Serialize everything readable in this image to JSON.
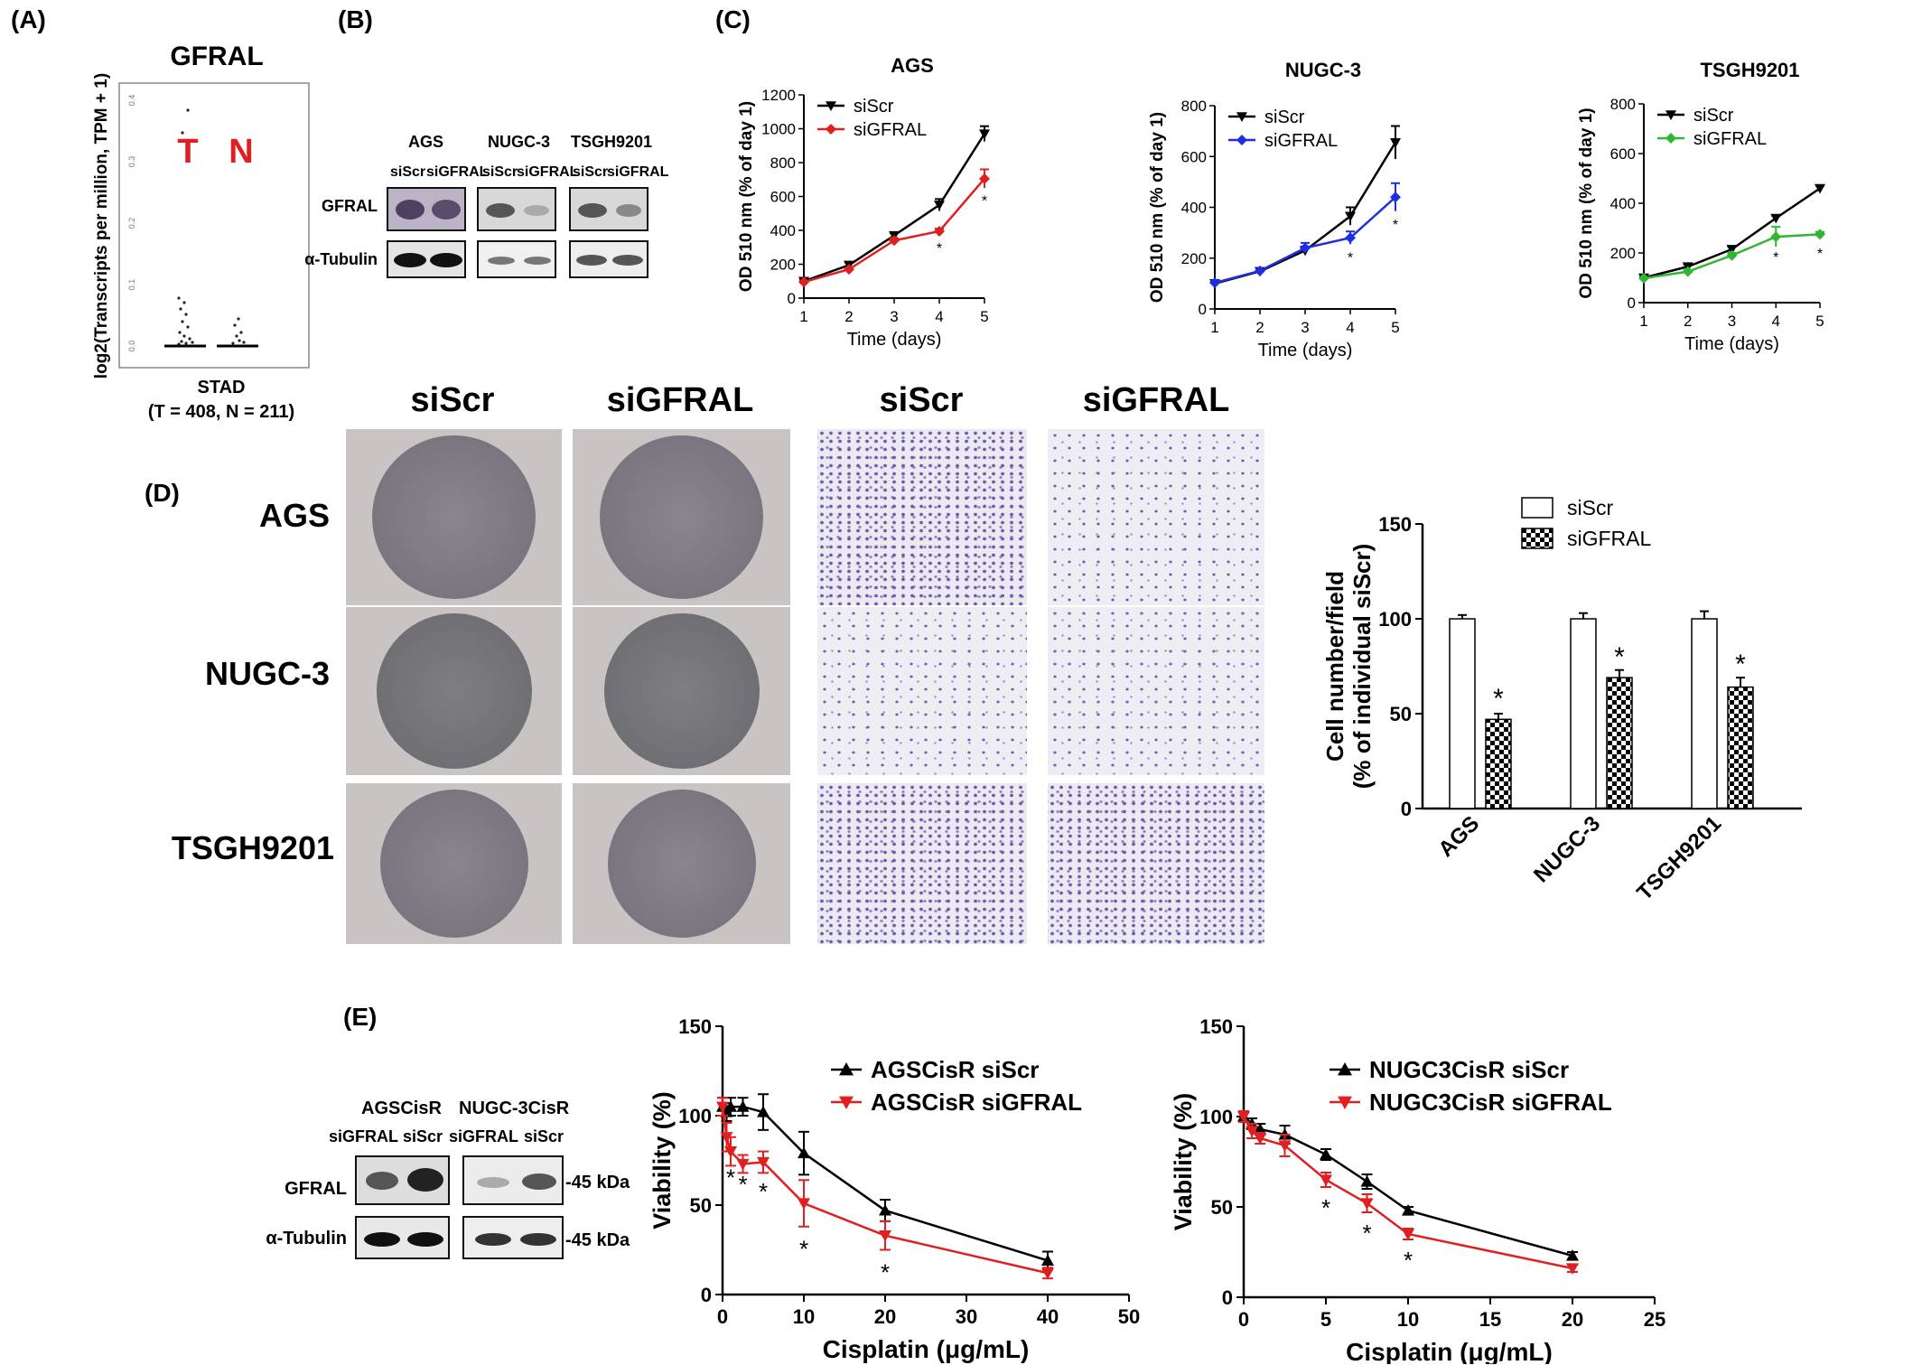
{
  "panels": {
    "A": {
      "label": "(A)",
      "title": "GFRAL",
      "ylabel": "log2(Transcripts per million, TPM + 1)",
      "yticks": [
        "0.0",
        "0.1",
        "0.2",
        "0.3",
        "0.4"
      ],
      "tumor_label": "T",
      "normal_label": "N",
      "xlabel_line1": "STAD",
      "xlabel_line2": "(T = 408, N = 211)",
      "tumor_color": "#e02020",
      "normal_color": "#e02020"
    },
    "B": {
      "label": "(B)",
      "cell_lines": [
        "AGS",
        "NUGC-3",
        "TSGH9201"
      ],
      "conditions": [
        "siScr",
        "siGFRAL"
      ],
      "rows": [
        "GFRAL",
        "α-Tubulin"
      ]
    },
    "C": {
      "label": "(C)"
    },
    "D": {
      "label": "(D)",
      "col_headers": [
        "siScr",
        "siGFRAL",
        "siScr",
        "siGFRAL"
      ],
      "row_headers": [
        "AGS",
        "NUGC-3",
        "TSGH9201"
      ]
    },
    "E": {
      "label": "(E)",
      "cell_lines": [
        "AGSCisR",
        "NUGC-3CisR"
      ],
      "conditions": [
        "siGFRAL",
        "siScr"
      ],
      "rows": [
        "GFRAL",
        "α-Tubulin"
      ],
      "markers": [
        "-45 kDa",
        "-45 kDa"
      ]
    }
  },
  "chart_data": [
    {
      "id": "C-AGS",
      "type": "line",
      "title": "AGS",
      "xlabel": "Time (days)",
      "ylabel": "OD 510 nm (% of day 1)",
      "x": [
        1,
        2,
        3,
        4,
        5
      ],
      "xlim": [
        1,
        5
      ],
      "ylim": [
        0,
        1200
      ],
      "yticks": [
        0,
        200,
        400,
        600,
        800,
        1000,
        1200
      ],
      "legend": "top-left",
      "series": [
        {
          "name": "siScr",
          "color": "#000000",
          "marker": "tri-down",
          "values": [
            100,
            195,
            370,
            550,
            970
          ],
          "err": [
            10,
            15,
            15,
            35,
            45
          ]
        },
        {
          "name": "siGFRAL",
          "color": "#e02020",
          "marker": "diamond",
          "values": [
            95,
            170,
            340,
            395,
            705
          ],
          "err": [
            8,
            10,
            15,
            15,
            55
          ]
        }
      ],
      "stars": [
        {
          "x": 4,
          "y": 300
        },
        {
          "x": 5,
          "y": 580
        }
      ]
    },
    {
      "id": "C-NUGC3",
      "type": "line",
      "title": "NUGC-3",
      "xlabel": "Time (days)",
      "ylabel": "OD 510 nm (% of day 1)",
      "x": [
        1,
        2,
        3,
        4,
        5
      ],
      "xlim": [
        1,
        5
      ],
      "ylim": [
        0,
        800
      ],
      "yticks": [
        0,
        200,
        400,
        600,
        800
      ],
      "legend": "top-left",
      "series": [
        {
          "name": "siScr",
          "color": "#000000",
          "marker": "tri-down",
          "values": [
            100,
            148,
            230,
            365,
            655
          ],
          "err": [
            8,
            8,
            15,
            35,
            65
          ]
        },
        {
          "name": "siGFRAL",
          "color": "#1f2ee0",
          "marker": "diamond",
          "values": [
            103,
            150,
            240,
            280,
            440
          ],
          "err": [
            8,
            8,
            20,
            25,
            55
          ]
        }
      ],
      "stars": [
        {
          "x": 4,
          "y": 205
        },
        {
          "x": 5,
          "y": 335
        }
      ]
    },
    {
      "id": "C-TSGH9201",
      "type": "line",
      "title": "TSGH9201",
      "xlabel": "Time (days)",
      "ylabel": "OD 510 nm (% of day 1)",
      "x": [
        1,
        2,
        3,
        4,
        5
      ],
      "xlim": [
        1,
        5
      ],
      "ylim": [
        0,
        800
      ],
      "yticks": [
        0,
        200,
        400,
        600,
        800
      ],
      "legend": "top-left",
      "series": [
        {
          "name": "siScr",
          "color": "#000000",
          "marker": "tri-down",
          "values": [
            100,
            145,
            215,
            340,
            460
          ],
          "err": [
            5,
            8,
            10,
            10,
            10
          ]
        },
        {
          "name": "siGFRAL",
          "color": "#2fb82f",
          "marker": "diamond",
          "values": [
            98,
            125,
            190,
            265,
            275
          ],
          "err": [
            5,
            6,
            10,
            40,
            10
          ]
        }
      ],
      "stars": [
        {
          "x": 4,
          "y": 185
        },
        {
          "x": 5,
          "y": 200
        }
      ]
    },
    {
      "id": "D-bar",
      "type": "bar",
      "categories": [
        "AGS",
        "NUGC-3",
        "TSGH9201"
      ],
      "ylabel_line1": "Cell number/field",
      "ylabel_line2": "(% of individual siScr)",
      "ylim": [
        0,
        150
      ],
      "yticks": [
        0,
        50,
        100,
        150
      ],
      "legend": "top-right",
      "series": [
        {
          "name": "siScr",
          "pattern": "open",
          "values": [
            100,
            100,
            100
          ],
          "err": [
            2,
            3,
            4
          ]
        },
        {
          "name": "siGFRAL",
          "pattern": "checker",
          "values": [
            47,
            69,
            64
          ],
          "err": [
            3,
            4,
            5
          ]
        }
      ],
      "stars": [
        {
          "cat": 0,
          "y": 60
        },
        {
          "cat": 1,
          "y": 82
        },
        {
          "cat": 2,
          "y": 78
        }
      ]
    },
    {
      "id": "E-AGS",
      "type": "line",
      "xlabel": "Cisplatin (μg/mL)",
      "ylabel": "Viability (%)",
      "xlim": [
        0,
        50
      ],
      "xticks": [
        0,
        10,
        20,
        30,
        40,
        50
      ],
      "ylim": [
        0,
        150
      ],
      "yticks": [
        0,
        50,
        100,
        150
      ],
      "legend": "top-right",
      "series": [
        {
          "name": "AGSCisR siScr",
          "color": "#000000",
          "marker": "tri-up",
          "x": [
            0,
            0.5,
            1,
            2.5,
            5,
            10,
            20,
            40
          ],
          "values": [
            105,
            102,
            105,
            105,
            102,
            79,
            47,
            19
          ],
          "err": [
            5,
            5,
            5,
            5,
            10,
            12,
            6,
            5
          ]
        },
        {
          "name": "AGSCisR siGFRAL",
          "color": "#e02020",
          "marker": "tri-down",
          "x": [
            0,
            0.5,
            1,
            2.5,
            5,
            10,
            20,
            40
          ],
          "values": [
            105,
            88,
            80,
            73,
            74,
            51,
            33,
            12
          ],
          "err": [
            5,
            8,
            8,
            5,
            6,
            13,
            8,
            3
          ]
        }
      ],
      "stars": [
        {
          "x": 1,
          "y": 66
        },
        {
          "x": 2.5,
          "y": 62
        },
        {
          "x": 5,
          "y": 58
        },
        {
          "x": 10,
          "y": 26
        },
        {
          "x": 20,
          "y": 13
        }
      ]
    },
    {
      "id": "E-NUGC3",
      "type": "line",
      "xlabel": "Cisplatin (μg/mL)",
      "ylabel": "Viability (%)",
      "xlim": [
        0,
        25
      ],
      "xticks": [
        0,
        5,
        10,
        15,
        20,
        25
      ],
      "ylim": [
        0,
        150
      ],
      "yticks": [
        0,
        50,
        100,
        150
      ],
      "legend": "top-right",
      "series": [
        {
          "name": "NUGC3CisR siScr",
          "color": "#000000",
          "marker": "tri-up",
          "x": [
            0,
            0.5,
            1,
            2.5,
            5,
            7.5,
            10,
            20
          ],
          "values": [
            100,
            96,
            93,
            90,
            79,
            64,
            48,
            23
          ],
          "err": [
            3,
            3,
            3,
            5,
            3,
            4,
            2,
            2
          ]
        },
        {
          "name": "NUGC3CisR siGFRAL",
          "color": "#e02020",
          "marker": "tri-down",
          "x": [
            0,
            0.5,
            1,
            2.5,
            5,
            7.5,
            10,
            20
          ],
          "values": [
            100,
            92,
            88,
            84,
            65,
            52,
            35,
            16
          ],
          "err": [
            3,
            4,
            3,
            6,
            4,
            5,
            3,
            2
          ]
        }
      ],
      "stars": [
        {
          "x": 5,
          "y": 50
        },
        {
          "x": 7.5,
          "y": 36
        },
        {
          "x": 10,
          "y": 21
        }
      ]
    }
  ]
}
